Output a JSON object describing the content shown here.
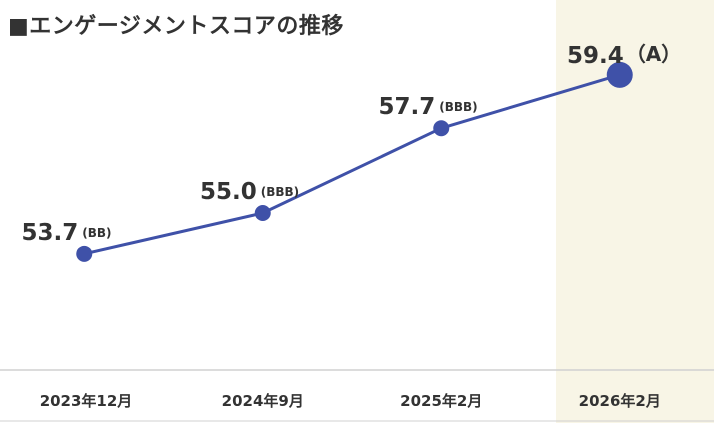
{
  "title": "■エンゲージメントスコアの推移",
  "colors": {
    "line": "#3F51A8",
    "highlight_band": "#F8F5E6",
    "axis": "#D0D0D0",
    "text": "#333333"
  },
  "chart_data": {
    "type": "line",
    "title": "■エンゲージメントスコアの推移",
    "xlabel": "",
    "ylabel": "",
    "categories": [
      "2023年12月",
      "2024年9月",
      "2025年2月",
      "2026年2月"
    ],
    "series": [
      {
        "values": [
          53.7,
          55.0,
          57.7,
          59.4
        ],
        "value_labels": [
          "53.7",
          "55.0",
          "57.7",
          "59.4"
        ],
        "grades": [
          "(BB)",
          "(BBB)",
          "(BBB)",
          "（A）"
        ]
      }
    ],
    "ylim": [
      50.0,
      60.0
    ],
    "grid": false,
    "highlighted_category": "2026年2月"
  }
}
